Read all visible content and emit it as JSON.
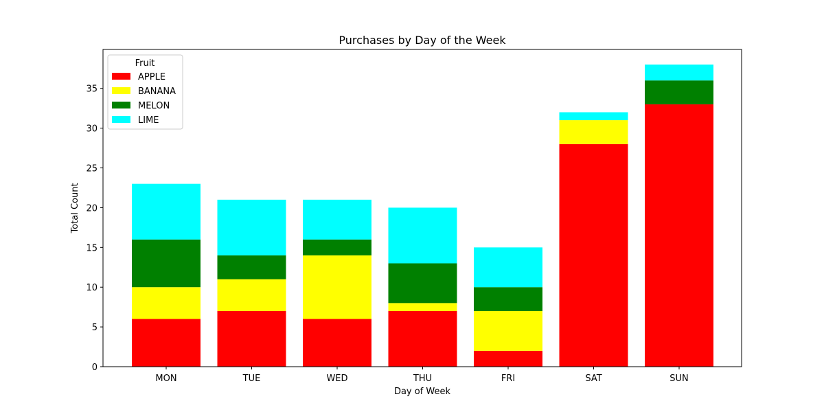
{
  "chart_data": {
    "type": "bar",
    "stacked": true,
    "title": "Purchases by Day of the Week",
    "xlabel": "Day of Week",
    "ylabel": "Total Count",
    "categories": [
      "MON",
      "TUE",
      "WED",
      "THU",
      "FRI",
      "SAT",
      "SUN"
    ],
    "ylim": [
      0,
      40
    ],
    "yticks": [
      0,
      5,
      10,
      15,
      20,
      25,
      30,
      35
    ],
    "legend": {
      "title": "Fruit",
      "placement": "top-left"
    },
    "grid": false,
    "series": [
      {
        "name": "APPLE",
        "color": "#ff0000",
        "values": [
          6,
          7,
          6,
          7,
          2,
          28,
          33
        ]
      },
      {
        "name": "BANANA",
        "color": "#ffff00",
        "values": [
          4,
          4,
          8,
          1,
          5,
          3,
          0
        ]
      },
      {
        "name": "MELON",
        "color": "#008000",
        "values": [
          6,
          3,
          2,
          5,
          3,
          0,
          3
        ]
      },
      {
        "name": "LIME",
        "color": "#00ffff",
        "values": [
          7,
          7,
          5,
          7,
          5,
          1,
          2
        ]
      }
    ]
  }
}
